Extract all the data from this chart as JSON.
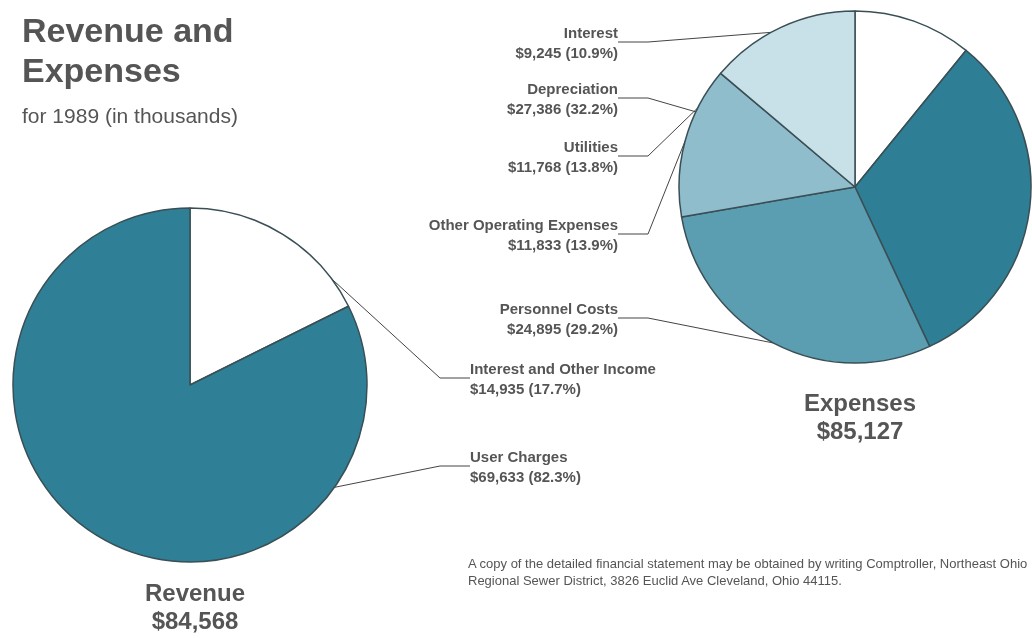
{
  "chart_data": [
    {
      "type": "pie",
      "title": "Revenue",
      "subtitle": "$84,568",
      "annotations": [
        "Revenue and Expenses",
        "for 1989 (in thousands)"
      ],
      "categories": [
        "Interest and Other Income",
        "User Charges"
      ],
      "values": [
        14935,
        69633
      ],
      "value_labels": [
        "$14,935 (17.7%)",
        "$69,633 (82.3%)"
      ],
      "colors": [
        "#ffffff",
        "#2f7f96"
      ]
    },
    {
      "type": "pie",
      "title": "Expenses",
      "subtitle": "$85,127",
      "annotations": [
        "A copy of the detailed financial statement may be obtained by writing Comptroller, Northeast Ohio Regional Sewer District, 3826 Euclid Ave Cleveland, Ohio 44115."
      ],
      "categories": [
        "Interest",
        "Depreciation",
        "Personnel Costs",
        "Other Operating Expenses",
        "Utilities"
      ],
      "values": [
        9245,
        27386,
        24895,
        11833,
        11768
      ],
      "value_labels": [
        "$9,245 (10.9%)",
        "$27,386 (32.2%)",
        "$24,895 (29.2%)",
        "$11,833 (13.9%)",
        "$11,768 (13.8%)"
      ],
      "colors": [
        "#ffffff",
        "#2e7f96",
        "#5b9db1",
        "#8fbdcb",
        "#c8e0e7"
      ]
    }
  ]
}
